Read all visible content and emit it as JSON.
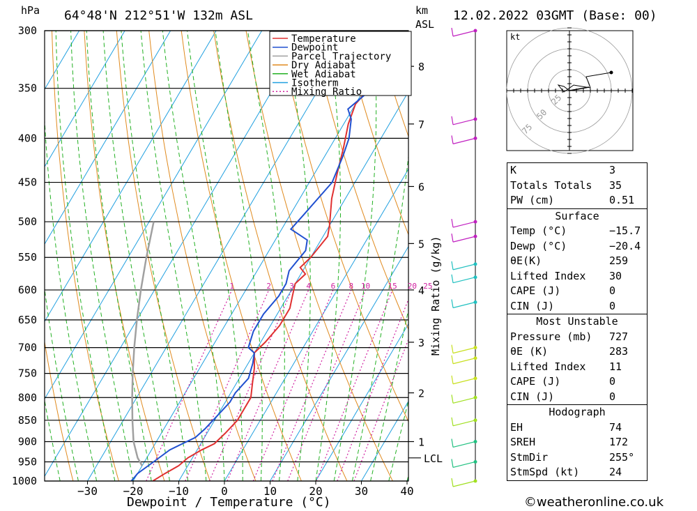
{
  "header": {
    "location": "64°48'N  212°51'W  132m  ASL",
    "datetime": "12.02.2022  03GMT  (Base: 00)",
    "hpa_label": "hPa",
    "km_label": "km",
    "asl_label": "ASL"
  },
  "chart_data": {
    "type": "line",
    "title": "",
    "xlabel": "Dewpoint / Temperature (°C)",
    "ylabel": "hPa",
    "y2label": "Mixing Ratio (g/kg)",
    "xlim": [
      -40,
      40
    ],
    "ylim": [
      1000,
      300
    ],
    "x_ticks": [
      -30,
      -20,
      -10,
      0,
      10,
      20,
      30,
      40
    ],
    "x_tick_labels": [
      "−30",
      "−20",
      "−10",
      "0",
      "10",
      "20",
      "30",
      "40"
    ],
    "pressure_levels": [
      300,
      350,
      400,
      450,
      500,
      550,
      600,
      650,
      700,
      750,
      800,
      850,
      900,
      950,
      1000
    ],
    "km_ticks": [
      {
        "km": 1,
        "p": 900
      },
      {
        "km": 2,
        "p": 790
      },
      {
        "km": 3,
        "p": 690
      },
      {
        "km": 4,
        "p": 600
      },
      {
        "km": 5,
        "p": 530
      },
      {
        "km": 6,
        "p": 455
      },
      {
        "km": 7,
        "p": 385
      },
      {
        "km": 8,
        "p": 330
      }
    ],
    "lcl_label": "LCL",
    "lcl_pressure": 940,
    "mixing_ratio_labels": [
      "1",
      "2",
      "3",
      "4",
      "6",
      "8",
      "10",
      "15",
      "20",
      "25"
    ],
    "mixing_ratio_values": [
      1,
      2,
      3,
      4,
      6,
      8,
      10,
      15,
      20,
      25
    ],
    "legend": [
      "Temperature",
      "Dewpoint",
      "Parcel Trajectory",
      "Dry Adiabat",
      "Wet Adiabat",
      "Isotherm",
      "Mixing Ratio"
    ],
    "legend_position": "top-right",
    "series": [
      {
        "name": "Temperature",
        "color": "#e03030",
        "points": [
          [
            -15.7,
            1000
          ],
          [
            -14,
            980
          ],
          [
            -12,
            960
          ],
          [
            -11,
            940
          ],
          [
            -9,
            920
          ],
          [
            -7,
            905
          ],
          [
            -6,
            880
          ],
          [
            -5,
            850
          ],
          [
            -5,
            800
          ],
          [
            -6.5,
            770
          ],
          [
            -8,
            740
          ],
          [
            -10,
            710
          ],
          [
            -9,
            690
          ],
          [
            -8,
            660
          ],
          [
            -8,
            630
          ],
          [
            -9,
            610
          ],
          [
            -10,
            590
          ],
          [
            -9,
            575
          ],
          [
            -11,
            565
          ],
          [
            -10,
            550
          ],
          [
            -9,
            520
          ],
          [
            -10,
            505
          ],
          [
            -13,
            470
          ],
          [
            -15,
            440
          ],
          [
            -17,
            410
          ],
          [
            -19,
            385
          ],
          [
            -20,
            365
          ],
          [
            -19,
            350
          ],
          [
            -18,
            330
          ],
          [
            -19,
            310
          ],
          [
            -19,
            300
          ]
        ]
      },
      {
        "name": "Dewpoint",
        "color": "#2050d0",
        "points": [
          [
            -20.4,
            1000
          ],
          [
            -20,
            980
          ],
          [
            -18,
            950
          ],
          [
            -16,
            920
          ],
          [
            -14,
            905
          ],
          [
            -12,
            890
          ],
          [
            -11,
            870
          ],
          [
            -10,
            840
          ],
          [
            -9,
            810
          ],
          [
            -9,
            790
          ],
          [
            -8,
            760
          ],
          [
            -9,
            730
          ],
          [
            -10,
            710
          ],
          [
            -12,
            700
          ],
          [
            -13,
            670
          ],
          [
            -13,
            640
          ],
          [
            -12,
            610
          ],
          [
            -12,
            590
          ],
          [
            -13,
            570
          ],
          [
            -12,
            540
          ],
          [
            -13,
            525
          ],
          [
            -18,
            510
          ],
          [
            -17,
            490
          ],
          [
            -15,
            450
          ],
          [
            -16,
            420
          ],
          [
            -17,
            400
          ],
          [
            -19,
            380
          ],
          [
            -21,
            370
          ],
          [
            -19,
            355
          ],
          [
            -24,
            345
          ],
          [
            -31,
            330
          ],
          [
            -36,
            310
          ],
          [
            -38,
            300
          ]
        ]
      },
      {
        "name": "Parcel Trajectory",
        "color": "#a0a0a0",
        "points": [
          [
            -20,
            960
          ],
          [
            -22,
            940
          ],
          [
            -25,
            900
          ],
          [
            -28,
            850
          ],
          [
            -31,
            800
          ],
          [
            -34,
            750
          ],
          [
            -37,
            700
          ],
          [
            -40,
            650
          ],
          [
            -43,
            600
          ],
          [
            -46,
            550
          ],
          [
            -49,
            500
          ]
        ]
      }
    ]
  },
  "winds": {
    "label": "wind barbs",
    "levels": [
      300,
      380,
      400,
      500,
      520,
      560,
      580,
      620,
      700,
      720,
      760,
      800,
      850,
      900,
      950,
      1000
    ]
  },
  "hodograph": {
    "unit_label": "kt",
    "ring_labels": [
      "25",
      "50",
      "75"
    ]
  },
  "indices": {
    "rows": [
      {
        "label": "K",
        "value": "3"
      },
      {
        "label": "Totals Totals",
        "value": "35"
      },
      {
        "label": "PW (cm)",
        "value": "0.51"
      }
    ]
  },
  "surface": {
    "title": "Surface",
    "rows": [
      {
        "label": "Temp (°C)",
        "value": "−15.7"
      },
      {
        "label": "Dewp (°C)",
        "value": "−20.4"
      },
      {
        "label": "θE(K)",
        "value": "259"
      },
      {
        "label": "Lifted Index",
        "value": "30"
      },
      {
        "label": "CAPE (J)",
        "value": "0"
      },
      {
        "label": "CIN (J)",
        "value": "0"
      }
    ]
  },
  "most_unstable": {
    "title": "Most Unstable",
    "rows": [
      {
        "label": "Pressure (mb)",
        "value": "727"
      },
      {
        "label": "θE (K)",
        "value": "283"
      },
      {
        "label": "Lifted Index",
        "value": "11"
      },
      {
        "label": "CAPE (J)",
        "value": "0"
      },
      {
        "label": "CIN (J)",
        "value": "0"
      }
    ]
  },
  "hodograph_panel": {
    "title": "Hodograph",
    "rows": [
      {
        "label": "EH",
        "value": "74"
      },
      {
        "label": "SREH",
        "value": "172"
      },
      {
        "label": "StmDir",
        "value": "255°"
      },
      {
        "label": "StmSpd (kt)",
        "value": "24"
      }
    ]
  },
  "footer": {
    "copyright": "©weatheronline.co.uk"
  },
  "colors": {
    "temperature": "#e03030",
    "dewpoint": "#2050d0",
    "parcel": "#a0a0a0",
    "dry_adiabat": "#e08a1e",
    "wet_adiabat": "#22b022",
    "isotherm": "#20a0e0",
    "mixing_ratio": "#d020a0"
  }
}
